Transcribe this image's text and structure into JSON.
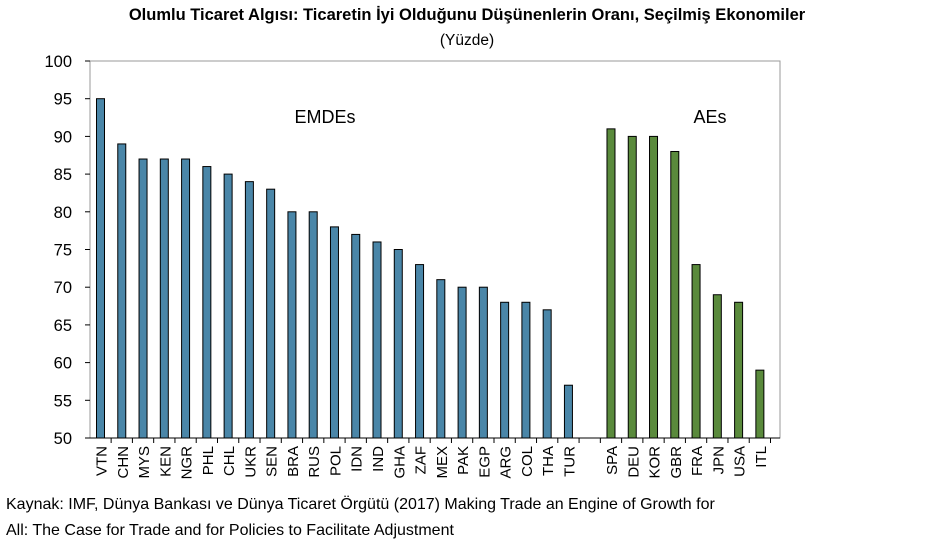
{
  "title": "Olumlu Ticaret Algısı: Ticaretin İyi Olduğunu Düşünenlerin Oranı, Seçilmiş Ekonomiler",
  "subtitle": "(Yüzde)",
  "source_line1": "Kaynak:  IMF, Dünya Bankası ve Dünya Ticaret Örgütü (2017) Making Trade an Engine of Growth for",
  "source_line2": "All: The Case for Trade and for Policies to Facilitate Adjustment",
  "colors": {
    "emde": "#4a86a8",
    "ae": "#5a8a3c",
    "axis": "#000000",
    "frame": "#9a9a9a"
  },
  "chart_data": {
    "type": "bar",
    "xlabel": "",
    "ylabel": "",
    "ylim": [
      50,
      100
    ],
    "yticks": [
      50,
      55,
      60,
      65,
      70,
      75,
      80,
      85,
      90,
      95,
      100
    ],
    "grid": false,
    "legend": "none",
    "annotations": [
      "EMDEs",
      "AEs"
    ],
    "series": [
      {
        "group": "EMDEs",
        "categories": [
          "VTN",
          "CHN",
          "MYS",
          "KEN",
          "NGR",
          "PHL",
          "CHL",
          "UKR",
          "SEN",
          "BRA",
          "RUS",
          "POL",
          "IDN",
          "IND",
          "GHA",
          "ZAF",
          "MEX",
          "PAK",
          "EGP",
          "ARG",
          "COL",
          "THA",
          "TUR"
        ],
        "values": [
          95,
          89,
          87,
          87,
          87,
          86,
          85,
          84,
          83,
          80,
          80,
          78,
          77,
          76,
          75,
          73,
          71,
          70,
          70,
          68,
          68,
          67,
          57
        ]
      },
      {
        "group": "AEs",
        "categories": [
          "SPA",
          "DEU",
          "KOR",
          "GBR",
          "FRA",
          "JPN",
          "USA",
          "ITL"
        ],
        "values": [
          91,
          90,
          90,
          88,
          73,
          69,
          68,
          59
        ]
      }
    ]
  }
}
